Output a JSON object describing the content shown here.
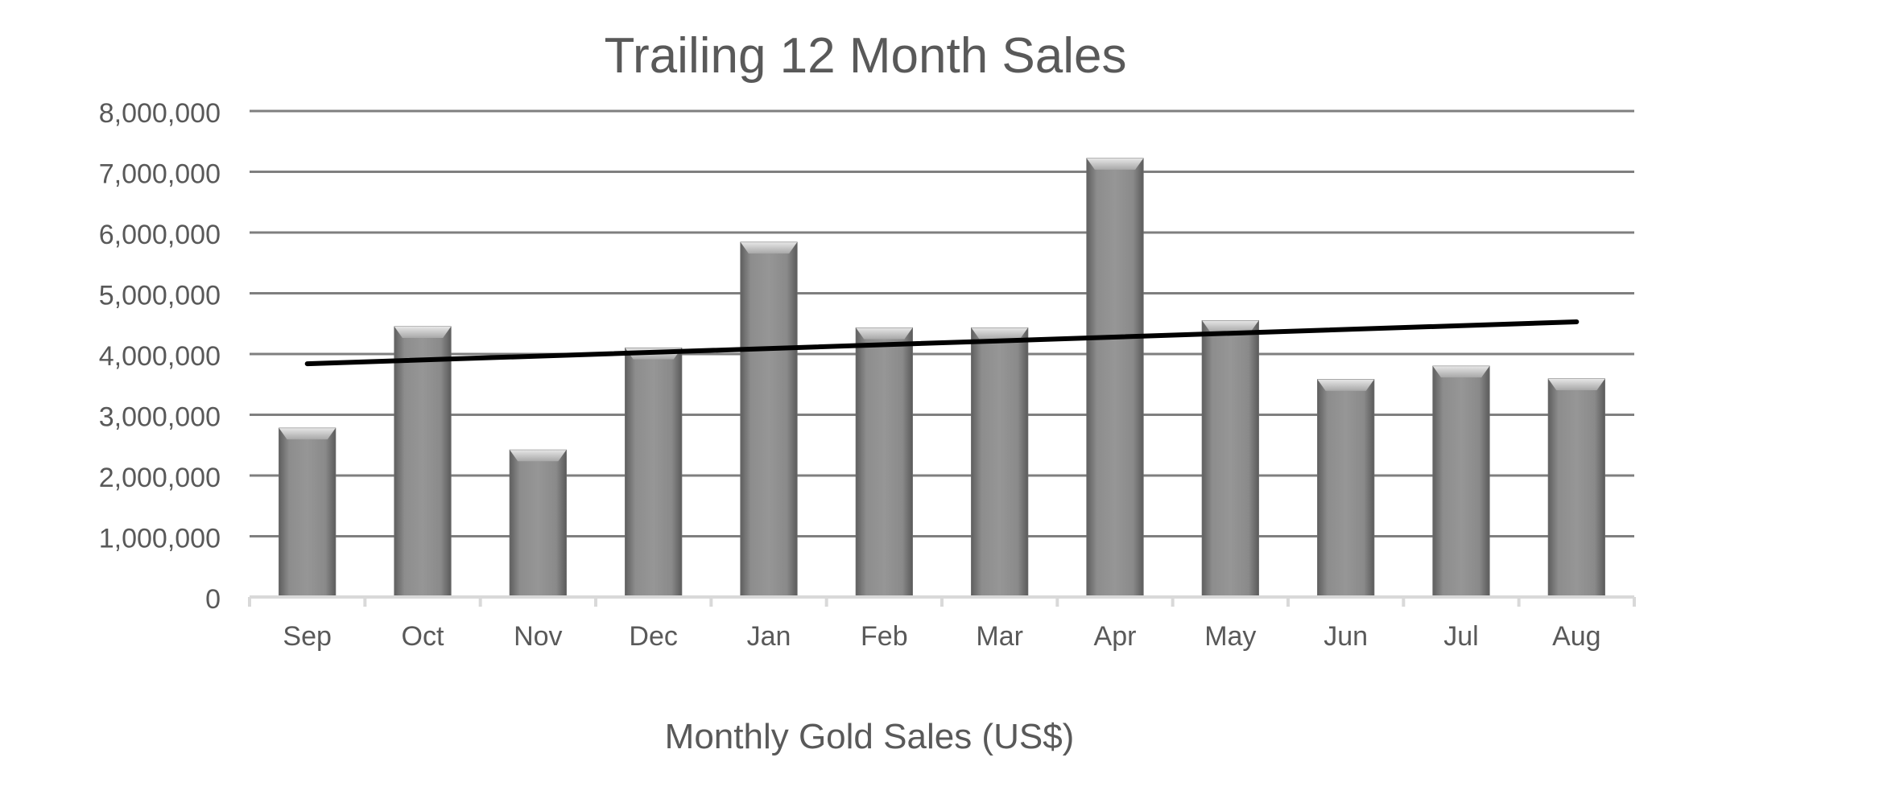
{
  "chart_data": {
    "type": "bar",
    "title": "Trailing 12 Month Sales",
    "xlabel": "Monthly Gold Sales (US$)",
    "ylabel": "",
    "categories": [
      "Sep",
      "Oct",
      "Nov",
      "Dec",
      "Jan",
      "Feb",
      "Mar",
      "Apr",
      "May",
      "Jun",
      "Jul",
      "Aug"
    ],
    "values": [
      2780000,
      4450000,
      2420000,
      4100000,
      5840000,
      4430000,
      4430000,
      7220000,
      4550000,
      3580000,
      3800000,
      3590000
    ],
    "ylim": [
      0,
      8000000
    ],
    "yticks": [
      0,
      1000000,
      2000000,
      3000000,
      4000000,
      5000000,
      6000000,
      7000000,
      8000000
    ],
    "ytick_labels": [
      "0",
      "1,000,000",
      "2,000,000",
      "3,000,000",
      "4,000,000",
      "5,000,000",
      "6,000,000",
      "7,000,000",
      "8,000,000"
    ],
    "trendline": {
      "type": "linear",
      "start": 3840000,
      "end": 4530000
    },
    "grid": true,
    "legend": "none",
    "colors": {
      "bar": "#8a8a8a",
      "bar_highlight": "#cfcfcf",
      "bar_shadow": "#5e5e5e",
      "gridline": "#7f7f7f",
      "axis": "#d9d9d9",
      "trendline": "#000000",
      "text": "#595959"
    }
  }
}
